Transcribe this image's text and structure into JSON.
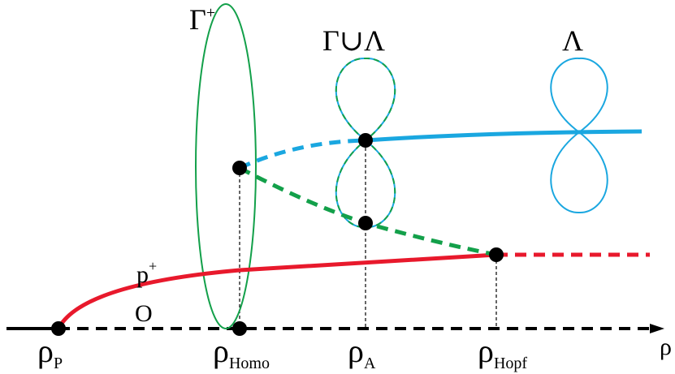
{
  "labels": {
    "gamma_plus": {
      "base": "Γ",
      "sup": "+"
    },
    "gamma_union_lambda": "Γ∪Λ",
    "lambda": "Λ",
    "p_plus": {
      "base": "p",
      "sup": "+"
    },
    "origin": "O",
    "axis": "ρ"
  },
  "ticks": [
    {
      "base": "ρ",
      "sub": "P"
    },
    {
      "base": "ρ",
      "sub": "Homo"
    },
    {
      "base": "ρ",
      "sub": "A"
    },
    {
      "base": "ρ",
      "sub": "Hopf"
    }
  ],
  "colors": {
    "red": "#e8192c",
    "green": "#13a04a",
    "blue": "#1aa7e0",
    "black": "#000000"
  }
}
